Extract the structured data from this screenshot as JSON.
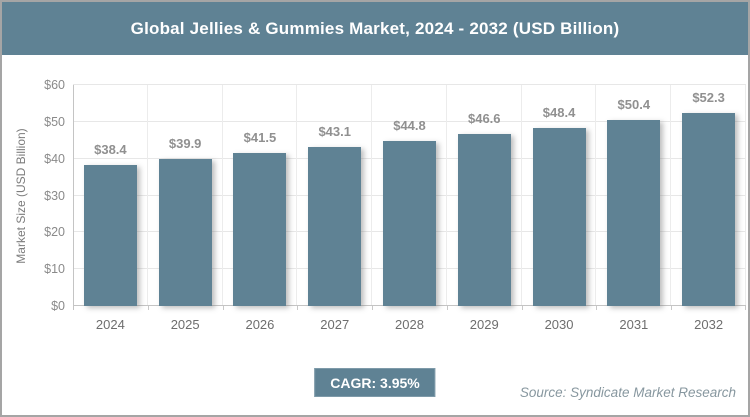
{
  "header": {
    "title": "Global Jellies & Gummies Market, 2024 - 2032 (USD Billion)"
  },
  "chart_data": {
    "type": "bar",
    "title": "Global Jellies & Gummies Market, 2024 - 2032 (USD Billion)",
    "categories": [
      "2024",
      "2025",
      "2026",
      "2027",
      "2028",
      "2029",
      "2030",
      "2031",
      "2032"
    ],
    "values": [
      38.4,
      39.9,
      41.5,
      43.1,
      44.8,
      46.6,
      48.4,
      50.4,
      52.3
    ],
    "value_labels": [
      "$38.4",
      "$39.9",
      "$41.5",
      "$43.1",
      "$44.8",
      "$46.6",
      "$48.4",
      "$50.4",
      "$52.3"
    ],
    "xlabel": "",
    "ylabel": "Market Size (USD Billion)",
    "ylim": [
      0,
      60
    ],
    "yticks": [
      0,
      10,
      20,
      30,
      40,
      50,
      60
    ],
    "ytick_labels": [
      "$0",
      "$10",
      "$20",
      "$30",
      "$40",
      "$50",
      "$60"
    ],
    "grid": true,
    "legend_position": "none",
    "cagr": "3.95%"
  },
  "footer": {
    "cagr_label": "CAGR: 3.95%",
    "source": "Source: Syndicate Market Research"
  },
  "colors": {
    "accent": "#5F8294",
    "bar": "#5F8294",
    "header_bg": "#5F8294",
    "header_text": "#FFFFFF",
    "grid_line": "#E7E7E7",
    "axis_line": "#C4C4C4",
    "value_label": "#909090",
    "ytick_label": "#8A8A8A",
    "year_label": "#6E6E6E",
    "source_text": "#87979F",
    "frame_border": "#A5A5A5"
  }
}
